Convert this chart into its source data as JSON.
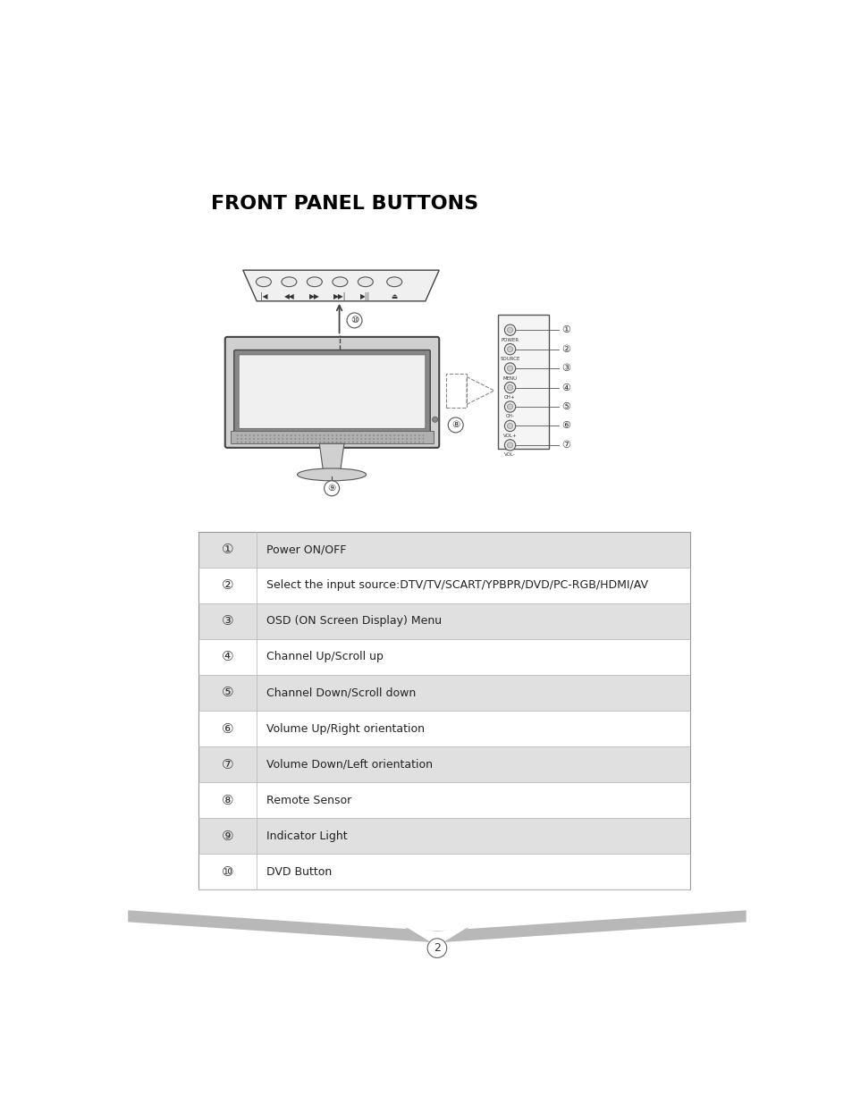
{
  "title": "FRONT PANEL BUTTONS",
  "title_fontsize": 16,
  "title_fontweight": "bold",
  "bg_color": "#ffffff",
  "table_rows": [
    {
      "num": 1,
      "icon": "①",
      "text": "Power ON/OFF",
      "bg": "#e0e0e0"
    },
    {
      "num": 2,
      "icon": "②",
      "text": "Select the input source:DTV/TV/SCART/YPBPR/DVD/PC-RGB/HDMI/AV",
      "bg": "#ffffff"
    },
    {
      "num": 3,
      "icon": "③",
      "text": "OSD (ON Screen Display) Menu",
      "bg": "#e0e0e0"
    },
    {
      "num": 4,
      "icon": "④",
      "text": "Channel Up/Scroll up",
      "bg": "#ffffff"
    },
    {
      "num": 5,
      "icon": "⑤",
      "text": "Channel Down/Scroll down",
      "bg": "#e0e0e0"
    },
    {
      "num": 6,
      "icon": "⑥",
      "text": "Volume Up/Right orientation",
      "bg": "#ffffff"
    },
    {
      "num": 7,
      "icon": "⑦",
      "text": "Volume Down/Left orientation",
      "bg": "#e0e0e0"
    },
    {
      "num": 8,
      "icon": "⑧",
      "text": "Remote Sensor",
      "bg": "#ffffff"
    },
    {
      "num": 9,
      "icon": "⑨",
      "text": "Indicator Light",
      "bg": "#e0e0e0"
    },
    {
      "num": 10,
      "icon": "⑩",
      "text": "DVD Button",
      "bg": "#ffffff"
    }
  ],
  "side_labels": [
    "POWER",
    "SOURCE",
    "MENU",
    "CH+",
    "CH-",
    "VOL+",
    "VOL-"
  ],
  "side_numbers": [
    "①",
    "②",
    "③",
    "④",
    "⑤",
    "⑥",
    "⑦"
  ],
  "dvd_symbols": [
    "|<",
    "<<",
    ">>",
    ">|",
    ">||",
    "⏏"
  ],
  "page_number": "2"
}
